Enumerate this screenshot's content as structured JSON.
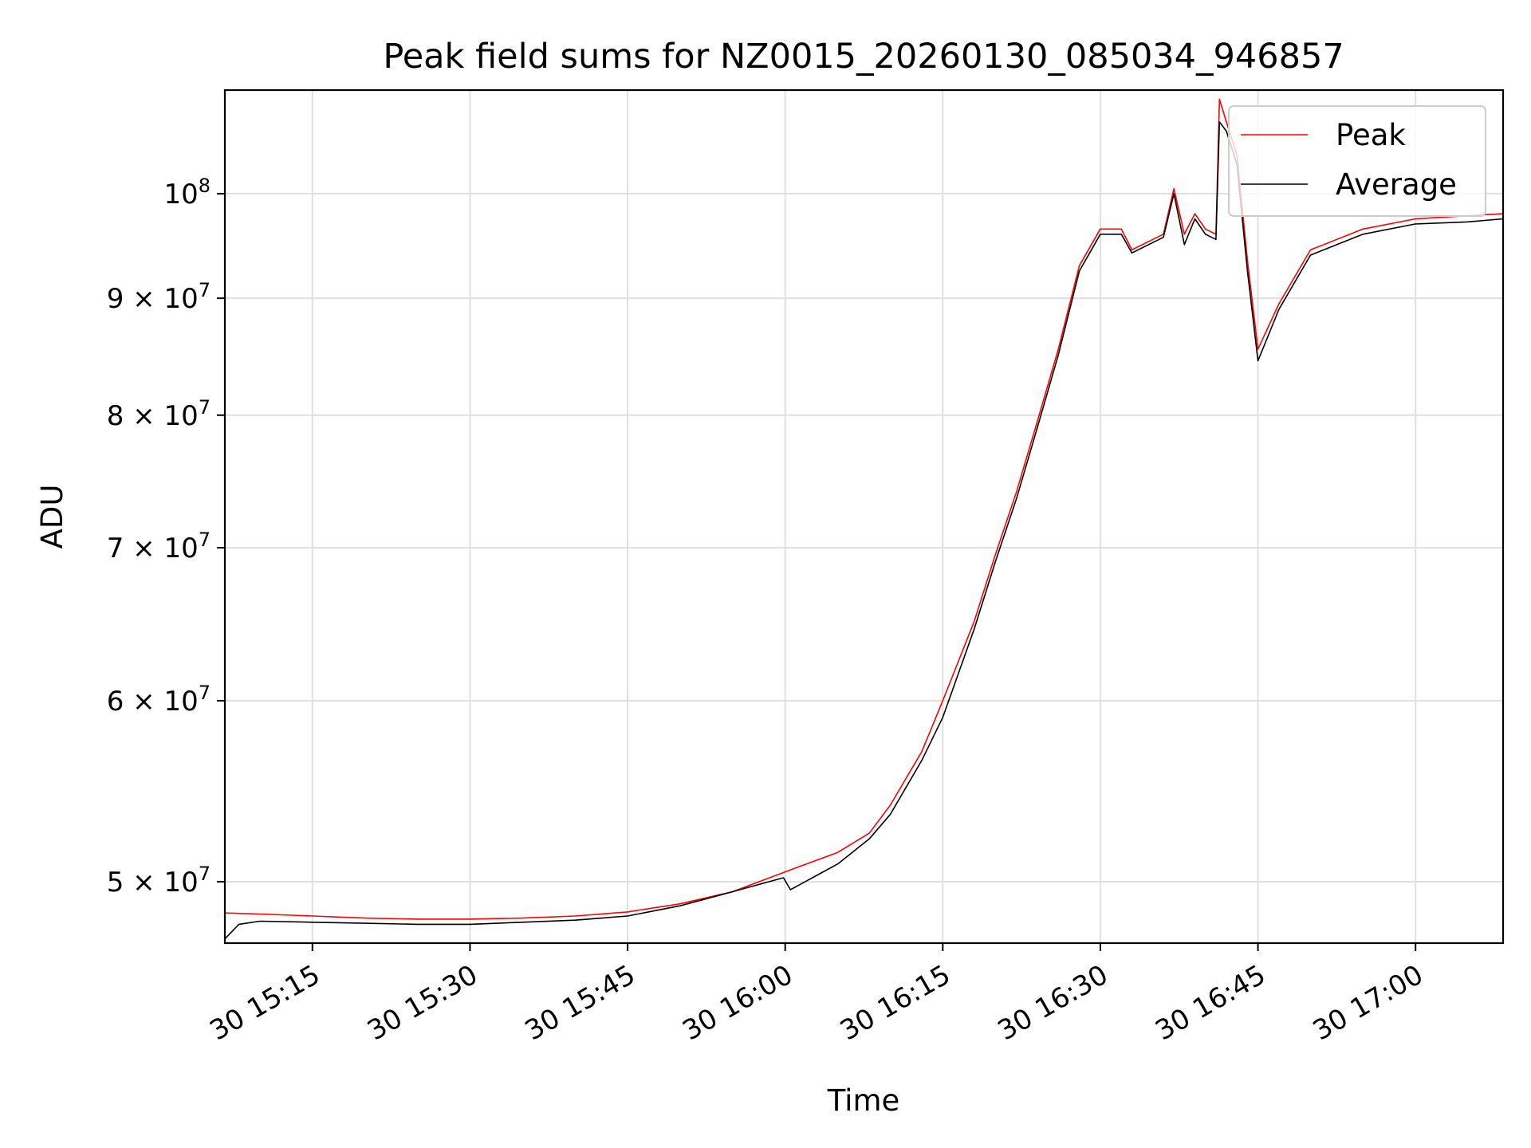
{
  "chart_data": {
    "type": "line",
    "title": "Peak field sums for NZ0015_20260130_085034_946857",
    "xlabel": "Time",
    "ylabel": "ADU",
    "y_scale": "log",
    "grid": true,
    "legend_position": "top-right",
    "x_range": [
      "2026-01-30 15:06:40",
      "2026-01-30 17:08:20"
    ],
    "y_range": [
      47000000,
      111000000
    ],
    "x_ticks": [
      {
        "value": "2026-01-30 15:15",
        "label": "30 15:15"
      },
      {
        "value": "2026-01-30 15:30",
        "label": "30 15:30"
      },
      {
        "value": "2026-01-30 15:45",
        "label": "30 15:45"
      },
      {
        "value": "2026-01-30 16:00",
        "label": "30 16:00"
      },
      {
        "value": "2026-01-30 16:15",
        "label": "30 16:15"
      },
      {
        "value": "2026-01-30 16:30",
        "label": "30 16:30"
      },
      {
        "value": "2026-01-30 16:45",
        "label": "30 16:45"
      },
      {
        "value": "2026-01-30 17:00",
        "label": "30 17:00"
      }
    ],
    "y_ticks": [
      {
        "value": 50000000,
        "mantissa": "5",
        "exponent": "7",
        "label": "5 × 10^7"
      },
      {
        "value": 60000000,
        "mantissa": "6",
        "exponent": "7",
        "label": "6 × 10^7"
      },
      {
        "value": 70000000,
        "mantissa": "7",
        "exponent": "7",
        "label": "7 × 10^7"
      },
      {
        "value": 80000000,
        "mantissa": "8",
        "exponent": "7",
        "label": "8 × 10^7"
      },
      {
        "value": 90000000,
        "mantissa": "9",
        "exponent": "7",
        "label": "9 × 10^7"
      },
      {
        "value": 100000000,
        "mantissa": "",
        "exponent": "8",
        "label": "10^8"
      }
    ],
    "series": [
      {
        "name": "Peak",
        "color": "#ff0000",
        "points": [
          [
            "2026-01-30 15:06:40",
            48450000
          ],
          [
            "2026-01-30 15:10:00",
            48400000
          ],
          [
            "2026-01-30 15:15:00",
            48300000
          ],
          [
            "2026-01-30 15:20:00",
            48200000
          ],
          [
            "2026-01-30 15:25:00",
            48150000
          ],
          [
            "2026-01-30 15:30:00",
            48150000
          ],
          [
            "2026-01-30 15:35:00",
            48200000
          ],
          [
            "2026-01-30 15:40:00",
            48300000
          ],
          [
            "2026-01-30 15:45:00",
            48500000
          ],
          [
            "2026-01-30 15:50:00",
            48900000
          ],
          [
            "2026-01-30 15:55:00",
            49500000
          ],
          [
            "2026-01-30 16:00:00",
            50500000
          ],
          [
            "2026-01-30 16:05:00",
            51500000
          ],
          [
            "2026-01-30 16:08:00",
            52500000
          ],
          [
            "2026-01-30 16:10:00",
            54000000
          ],
          [
            "2026-01-30 16:13:00",
            57000000
          ],
          [
            "2026-01-30 16:15:00",
            60000000
          ],
          [
            "2026-01-30 16:18:00",
            65000000
          ],
          [
            "2026-01-30 16:20:00",
            69500000
          ],
          [
            "2026-01-30 16:22:00",
            74000000
          ],
          [
            "2026-01-30 16:24:00",
            79500000
          ],
          [
            "2026-01-30 16:26:00",
            85500000
          ],
          [
            "2026-01-30 16:28:00",
            93000000
          ],
          [
            "2026-01-30 16:30:00",
            96500000
          ],
          [
            "2026-01-30 16:32:00",
            96500000
          ],
          [
            "2026-01-30 16:33:00",
            94500000
          ],
          [
            "2026-01-30 16:35:00",
            95500000
          ],
          [
            "2026-01-30 16:36:00",
            96000000
          ],
          [
            "2026-01-30 16:37:00",
            100500000
          ],
          [
            "2026-01-30 16:38:00",
            96000000
          ],
          [
            "2026-01-30 16:39:00",
            98000000
          ],
          [
            "2026-01-30 16:40:00",
            96500000
          ],
          [
            "2026-01-30 16:41:00",
            96000000
          ],
          [
            "2026-01-30 16:41:20",
            110000000
          ],
          [
            "2026-01-30 16:42:00",
            107500000
          ],
          [
            "2026-01-30 16:43:00",
            104000000
          ],
          [
            "2026-01-30 16:44:00",
            93500000
          ],
          [
            "2026-01-30 16:45:00",
            85500000
          ],
          [
            "2026-01-30 16:47:00",
            89500000
          ],
          [
            "2026-01-30 16:50:00",
            94500000
          ],
          [
            "2026-01-30 16:55:00",
            96500000
          ],
          [
            "2026-01-30 17:00:00",
            97500000
          ],
          [
            "2026-01-30 17:05:00",
            97800000
          ],
          [
            "2026-01-30 17:08:20",
            98000000
          ]
        ]
      },
      {
        "name": "Average",
        "color": "#000000",
        "points": [
          [
            "2026-01-30 15:06:40",
            47200000
          ],
          [
            "2026-01-30 15:08:00",
            47900000
          ],
          [
            "2026-01-30 15:10:00",
            48050000
          ],
          [
            "2026-01-30 15:15:00",
            48000000
          ],
          [
            "2026-01-30 15:20:00",
            47950000
          ],
          [
            "2026-01-30 15:25:00",
            47900000
          ],
          [
            "2026-01-30 15:30:00",
            47900000
          ],
          [
            "2026-01-30 15:35:00",
            48000000
          ],
          [
            "2026-01-30 15:40:00",
            48100000
          ],
          [
            "2026-01-30 15:45:00",
            48300000
          ],
          [
            "2026-01-30 15:50:00",
            48800000
          ],
          [
            "2026-01-30 15:55:00",
            49500000
          ],
          [
            "2026-01-30 15:59:50",
            50200000
          ],
          [
            "2026-01-30 16:00:30",
            49600000
          ],
          [
            "2026-01-30 16:05:00",
            50900000
          ],
          [
            "2026-01-30 16:08:00",
            52200000
          ],
          [
            "2026-01-30 16:10:00",
            53500000
          ],
          [
            "2026-01-30 16:13:00",
            56500000
          ],
          [
            "2026-01-30 16:15:00",
            59000000
          ],
          [
            "2026-01-30 16:18:00",
            64500000
          ],
          [
            "2026-01-30 16:20:00",
            69000000
          ],
          [
            "2026-01-30 16:22:00",
            73500000
          ],
          [
            "2026-01-30 16:24:00",
            79000000
          ],
          [
            "2026-01-30 16:26:00",
            85000000
          ],
          [
            "2026-01-30 16:28:00",
            92500000
          ],
          [
            "2026-01-30 16:30:00",
            96000000
          ],
          [
            "2026-01-30 16:32:00",
            96000000
          ],
          [
            "2026-01-30 16:33:00",
            94200000
          ],
          [
            "2026-01-30 16:35:00",
            95200000
          ],
          [
            "2026-01-30 16:36:00",
            95700000
          ],
          [
            "2026-01-30 16:37:00",
            100000000
          ],
          [
            "2026-01-30 16:38:00",
            95000000
          ],
          [
            "2026-01-30 16:39:00",
            97500000
          ],
          [
            "2026-01-30 16:40:00",
            96000000
          ],
          [
            "2026-01-30 16:41:00",
            95500000
          ],
          [
            "2026-01-30 16:41:20",
            107500000
          ],
          [
            "2026-01-30 16:42:00",
            106500000
          ],
          [
            "2026-01-30 16:43:00",
            103000000
          ],
          [
            "2026-01-30 16:44:00",
            92500000
          ],
          [
            "2026-01-30 16:45:00",
            84500000
          ],
          [
            "2026-01-30 16:47:00",
            89000000
          ],
          [
            "2026-01-30 16:50:00",
            94000000
          ],
          [
            "2026-01-30 16:55:00",
            96000000
          ],
          [
            "2026-01-30 17:00:00",
            97000000
          ],
          [
            "2026-01-30 17:05:00",
            97200000
          ],
          [
            "2026-01-30 17:08:20",
            97500000
          ]
        ]
      }
    ]
  }
}
